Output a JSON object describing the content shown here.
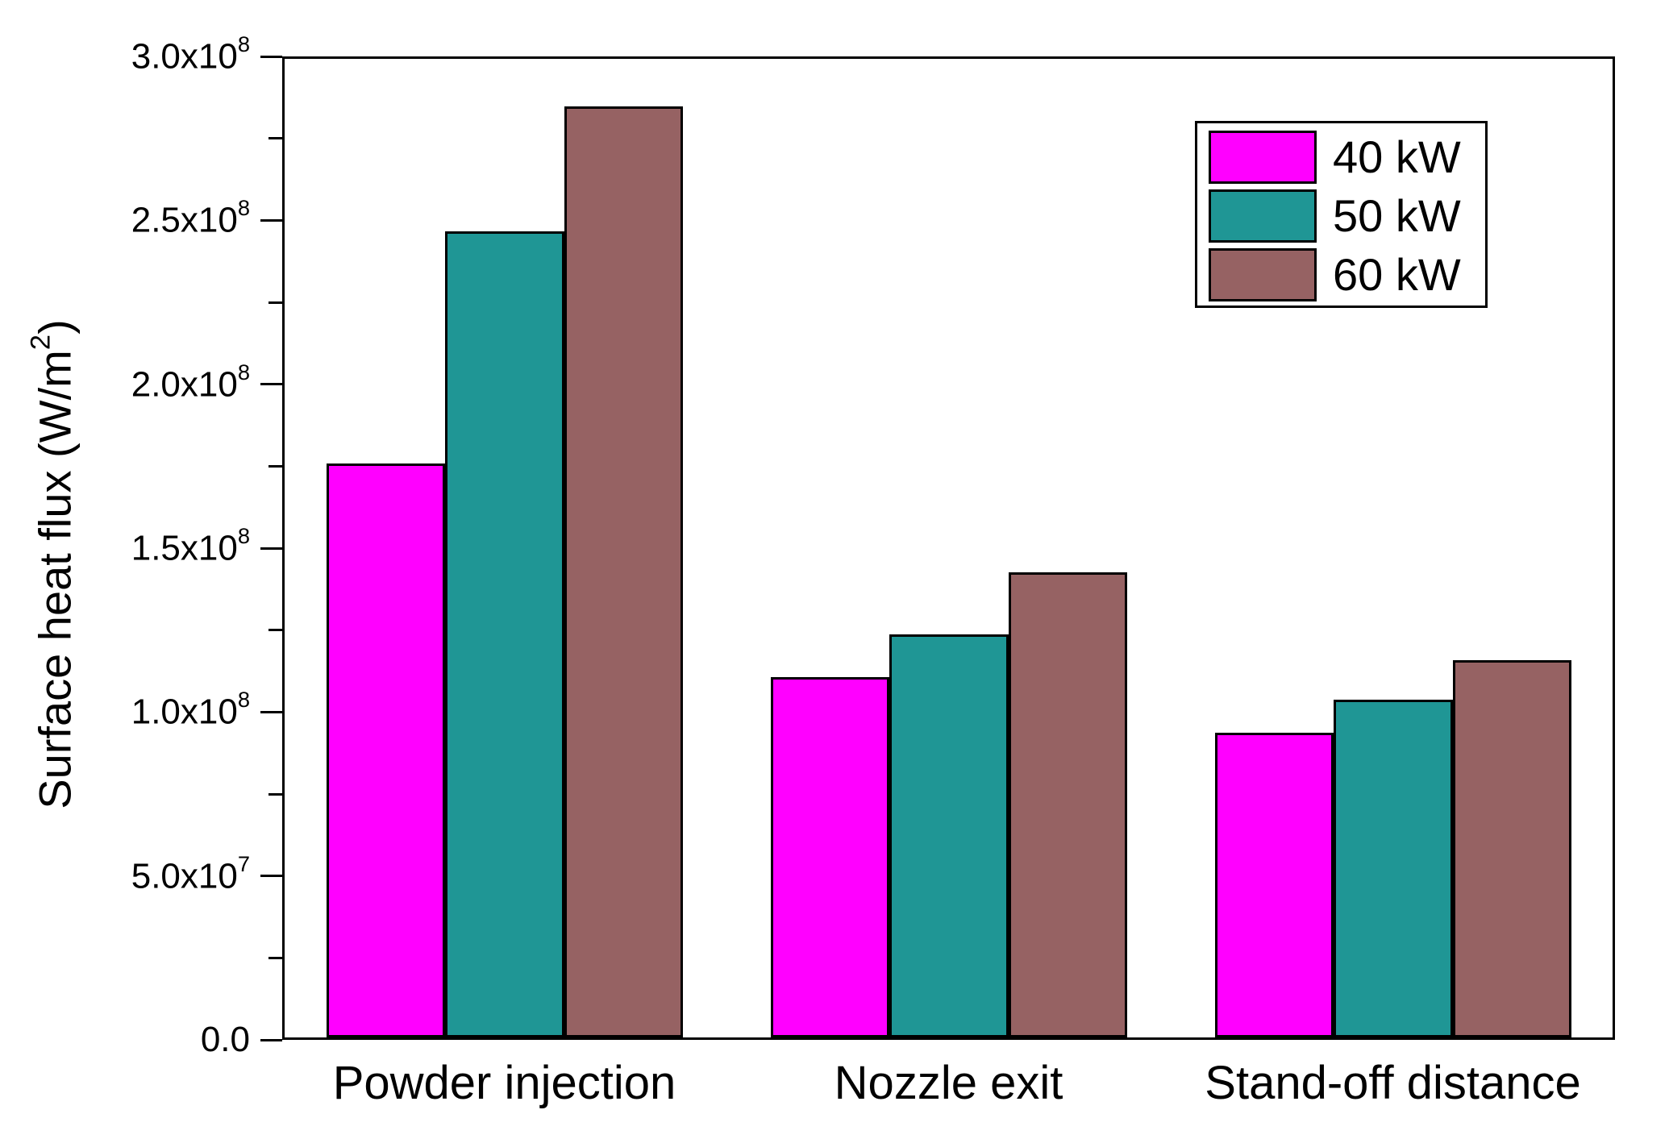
{
  "figure": {
    "background": "#ffffff",
    "axis_color": "#000000"
  },
  "chart_data": {
    "type": "bar",
    "title": "",
    "xlabel": "",
    "ylabel": {
      "prefix": "Surface heat flux (W/m",
      "sup": "2",
      "suffix": ")"
    },
    "categories": [
      "Powder injection",
      "Nozzle exit",
      "Stand-off distance"
    ],
    "series": [
      {
        "name": "40 kW",
        "color": "#ff00ff",
        "values": [
          175000000,
          110000000,
          93000000
        ]
      },
      {
        "name": "50 kW",
        "color": "#1f9695",
        "values": [
          246000000,
          123000000,
          103000000
        ]
      },
      {
        "name": "60 kW",
        "color": "#966263",
        "values": [
          284000000,
          142000000,
          115000000
        ]
      }
    ],
    "ylim": [
      0,
      300000000
    ],
    "yticks": [
      {
        "value": 0,
        "main": "0.0",
        "sup": ""
      },
      {
        "value": 50000000,
        "main": "5.0x10",
        "sup": "7"
      },
      {
        "value": 100000000,
        "main": "1.0x10",
        "sup": "8"
      },
      {
        "value": 150000000,
        "main": "1.5x10",
        "sup": "8"
      },
      {
        "value": 200000000,
        "main": "2.0x10",
        "sup": "8"
      },
      {
        "value": 250000000,
        "main": "2.5x10",
        "sup": "8"
      },
      {
        "value": 300000000,
        "main": "3.0x10",
        "sup": "8"
      }
    ],
    "minor_tick_step": 25000000,
    "grid": false,
    "legend": {
      "position": "top-right",
      "entries": [
        "40 kW",
        "50 kW",
        "60 kW"
      ]
    }
  }
}
